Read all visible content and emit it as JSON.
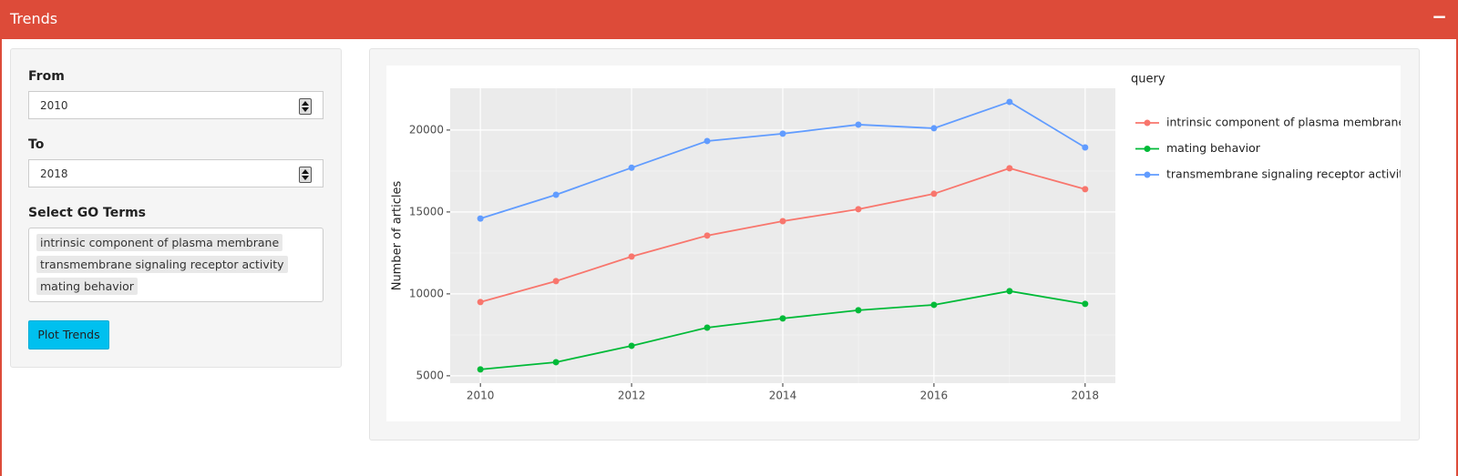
{
  "header": {
    "title": "Trends",
    "collapse": "−"
  },
  "sidebar": {
    "from_label": "From",
    "from_value": "2010",
    "to_label": "To",
    "to_value": "2018",
    "terms_label": "Select GO Terms",
    "selected_terms": [
      "intrinsic component of plasma membrane",
      "transmembrane signaling receptor activity",
      "mating behavior"
    ],
    "button": "Plot Trends"
  },
  "chart_data": {
    "type": "line",
    "y_label": "Number of articles",
    "legend_title": "query",
    "x": [
      2010,
      2011,
      2012,
      2013,
      2014,
      2015,
      2016,
      2017,
      2018
    ],
    "xlim": [
      2009.6,
      2018.4
    ],
    "xticks": [
      2010,
      2012,
      2014,
      2016,
      2018
    ],
    "ylim": [
      4550,
      22550
    ],
    "yticks": [
      5000,
      10000,
      15000,
      20000
    ],
    "grid": true,
    "legend": "right",
    "series": [
      {
        "name": "intrinsic component of plasma membrane",
        "color": "#f8766d",
        "values": [
          9500,
          10780,
          12280,
          13560,
          14440,
          15170,
          16110,
          17670,
          16390
        ]
      },
      {
        "name": "mating behavior",
        "color": "#00ba38",
        "values": [
          5390,
          5830,
          6830,
          7940,
          8500,
          9000,
          9330,
          10170,
          9390
        ]
      },
      {
        "name": "transmembrane signaling receptor activity",
        "color": "#619cff",
        "values": [
          14600,
          16050,
          17700,
          19330,
          19780,
          20330,
          20110,
          21720,
          18940
        ]
      }
    ]
  }
}
